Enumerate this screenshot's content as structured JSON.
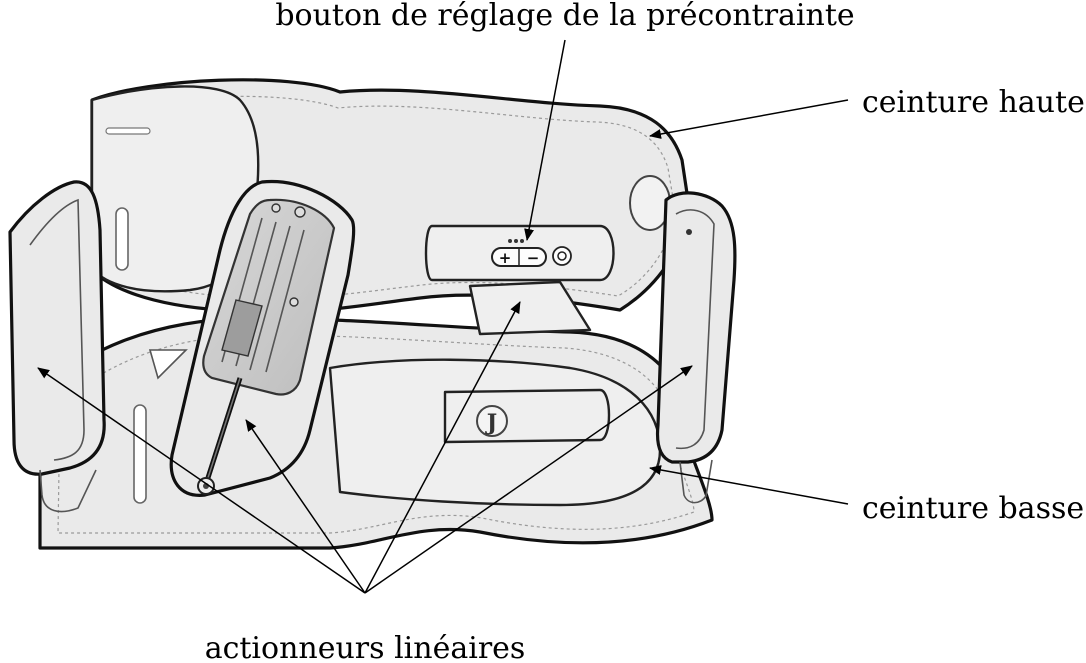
{
  "labels": {
    "preload_button": "bouton de réglage de la précontrainte",
    "upper_belt": "ceinture haute",
    "lower_belt": "ceinture basse",
    "linear_actuators": "actionneurs linéaires"
  },
  "device": {
    "buckle_mark": "J",
    "plus_symbol": "+",
    "minus_symbol": "−"
  }
}
